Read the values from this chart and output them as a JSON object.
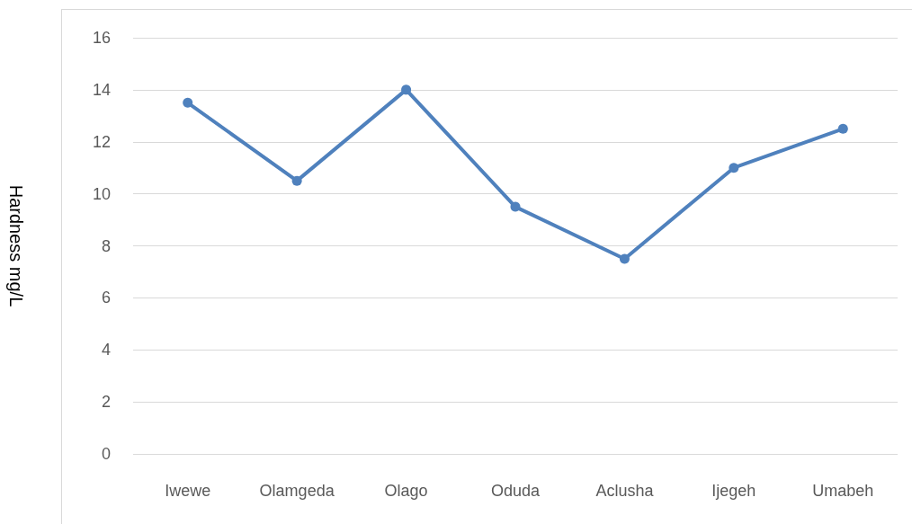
{
  "chart_data": {
    "type": "line",
    "ylabel": "Hardness mg/L",
    "categories": [
      "Iwewe",
      "Olamgeda",
      "Olago",
      "Oduda",
      "Aclusha",
      "Ijegeh",
      "Umabeh"
    ],
    "series": [
      {
        "color": "#4f81bd",
        "values": [
          13.5,
          10.5,
          14,
          9.5,
          7.5,
          11,
          12.5
        ]
      }
    ],
    "ylim": [
      0,
      16
    ],
    "yticks": [
      0,
      2,
      4,
      6,
      8,
      10,
      12,
      14,
      16
    ],
    "grid": "y",
    "marker": "circle",
    "line_style": "solid"
  }
}
